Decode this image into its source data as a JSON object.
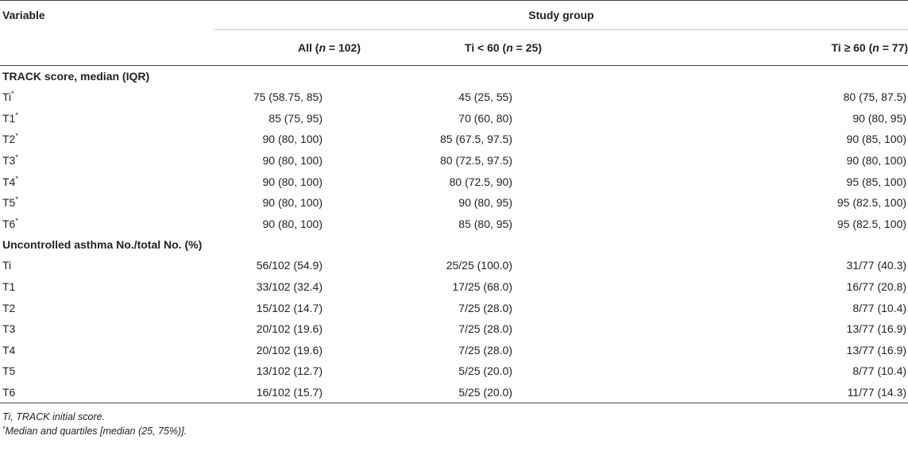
{
  "header": {
    "variable": "Variable",
    "study_group": "Study group",
    "columns": [
      {
        "prefix": "All (",
        "n": "n",
        "suffix": " = 102)"
      },
      {
        "prefix": "Ti < 60 (",
        "n": "n",
        "suffix": " = 25)"
      },
      {
        "prefix": "Ti ≥ 60 (",
        "n": "n",
        "suffix": " = 77)"
      }
    ]
  },
  "sections": [
    {
      "title": "TRACK score, median (IQR)",
      "rows": [
        {
          "label": "Ti",
          "star": "*",
          "all": "75 (58.75, 85)",
          "lt60": "45 (25, 55)",
          "ge60": "80 (75, 87.5)"
        },
        {
          "label": "T1",
          "star": "*",
          "all": "85 (75, 95)",
          "lt60": "70 (60, 80)",
          "ge60": "90 (80, 95)"
        },
        {
          "label": "T2",
          "star": "*",
          "all": "90 (80, 100)",
          "lt60": "85 (67.5, 97.5)",
          "ge60": "90 (85, 100)"
        },
        {
          "label": "T3",
          "star": "*",
          "all": "90 (80, 100)",
          "lt60": "80 (72.5, 97.5)",
          "ge60": "90 (80, 100)"
        },
        {
          "label": "T4",
          "star": "*",
          "all": "90 (80, 100)",
          "lt60": "80 (72.5, 90)",
          "ge60": "95 (85, 100)"
        },
        {
          "label": "T5",
          "star": "*",
          "all": "90 (80, 100)",
          "lt60": "90 (80, 95)",
          "ge60": "95 (82.5, 100)"
        },
        {
          "label": "T6",
          "star": "*",
          "all": "90 (80, 100)",
          "lt60": "85 (80, 95)",
          "ge60": "95 (82.5, 100)"
        }
      ]
    },
    {
      "title": "Uncontrolled asthma No./total No. (%)",
      "rows": [
        {
          "label": "Ti",
          "star": "",
          "all": "56/102 (54.9)",
          "lt60": "25/25 (100.0)",
          "ge60": "31/77 (40.3)"
        },
        {
          "label": "T1",
          "star": "",
          "all": "33/102 (32.4)",
          "lt60": "17/25 (68.0)",
          "ge60": "16/77 (20.8)"
        },
        {
          "label": "T2",
          "star": "",
          "all": "15/102 (14.7)",
          "lt60": "7/25 (28.0)",
          "ge60": "8/77 (10.4)"
        },
        {
          "label": "T3",
          "star": "",
          "all": "20/102 (19.6)",
          "lt60": "7/25 (28.0)",
          "ge60": "13/77 (16.9)"
        },
        {
          "label": "T4",
          "star": "",
          "all": "20/102 (19.6)",
          "lt60": "7/25 (28.0)",
          "ge60": "13/77 (16.9)"
        },
        {
          "label": "T5",
          "star": "",
          "all": "13/102 (12.7)",
          "lt60": "5/25 (20.0)",
          "ge60": "8/77 (10.4)"
        },
        {
          "label": "T6",
          "star": "",
          "all": "16/102 (15.7)",
          "lt60": "5/25 (20.0)",
          "ge60": "11/77 (14.3)"
        }
      ]
    }
  ],
  "footnotes": {
    "abbrev": "Ti, TRACK initial score.",
    "star_mark": "*",
    "star_note": "Median and quartiles [median (25, 75%)]."
  }
}
